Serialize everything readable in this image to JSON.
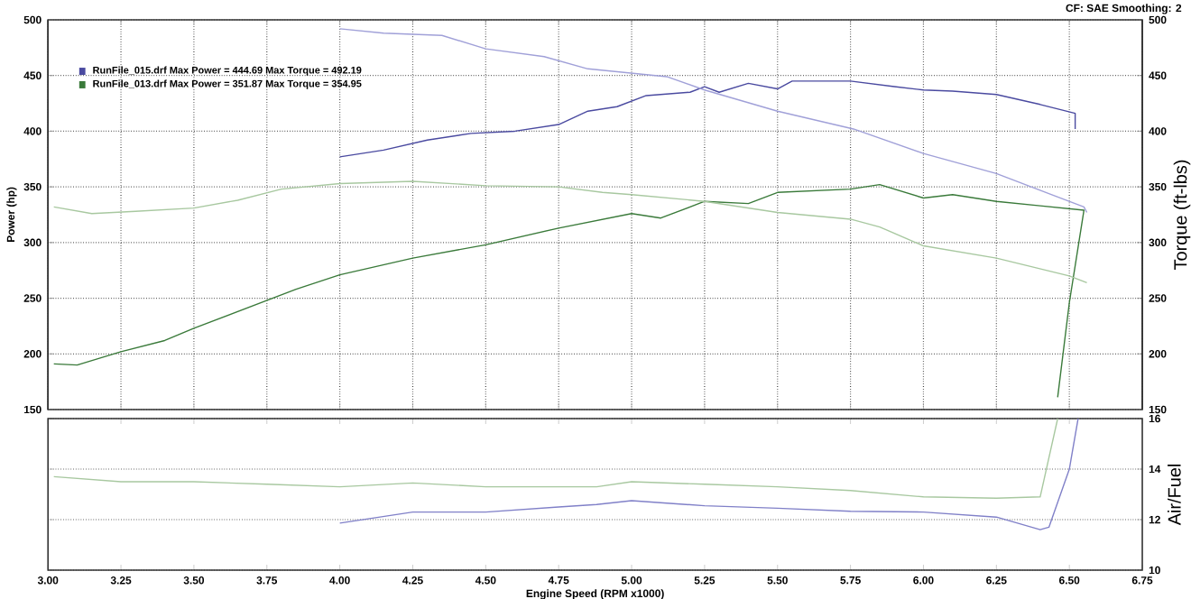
{
  "chart_data": [
    {
      "type": "line",
      "subtitle": "CF: SAE  Smoothing: 2",
      "ylabel": "Power (hp)",
      "y2label": "Torque (ft-lbs)",
      "xlim": [
        3,
        6.75
      ],
      "xticks": [
        3,
        3.25,
        3.5,
        3.75,
        4,
        4.25,
        4.5,
        4.75,
        5,
        5.25,
        5.5,
        5.75,
        6,
        6.25,
        6.5,
        6.75
      ],
      "ylim": [
        150,
        500
      ],
      "yticks": [
        150,
        200,
        250,
        300,
        350,
        400,
        450,
        500
      ],
      "y2lim": [
        150,
        500
      ],
      "y2ticks": [
        150,
        200,
        250,
        300,
        350,
        400,
        450,
        500
      ],
      "grid": true,
      "legend": "top left",
      "tick_labels": "y",
      "series": [
        {
          "name": "RunFile_015.drf Max Power = 444.69     Max Torque = 492.19",
          "color": "#4a4aa0",
          "axis": "y",
          "x": [
            4.0,
            4.15,
            4.3,
            4.45,
            4.6,
            4.75,
            4.85,
            4.95,
            5.05,
            5.2,
            5.25,
            5.3,
            5.4,
            5.5,
            5.55,
            5.75,
            5.9,
            6.0,
            6.1,
            6.25,
            6.4,
            6.52,
            6.52
          ],
          "values": [
            377,
            383,
            392,
            398,
            400,
            406,
            418,
            422,
            432,
            435,
            440,
            435,
            443,
            438,
            445,
            445,
            440,
            437,
            436,
            433,
            424,
            416,
            402
          ]
        },
        {
          "color": "#a0a0d8",
          "axis": "y2",
          "x": [
            4.0,
            4.15,
            4.35,
            4.5,
            4.7,
            4.85,
            5.12,
            5.25,
            5.5,
            5.76,
            6.0,
            6.25,
            6.44,
            6.55,
            6.56
          ],
          "values": [
            492,
            488,
            486,
            474,
            467,
            456,
            449,
            437,
            418,
            402,
            380,
            362,
            343,
            332,
            327
          ]
        },
        {
          "name": "RunFile_013.drf Max Power = 351.87     Max Torque = 354.95",
          "color": "#3a7a3a",
          "axis": "y",
          "x": [
            3.02,
            3.1,
            3.25,
            3.4,
            3.5,
            3.65,
            3.75,
            3.85,
            4.0,
            4.25,
            4.5,
            4.75,
            5.0,
            5.1,
            5.25,
            5.4,
            5.5,
            5.75,
            5.85,
            6.0,
            6.1,
            6.25,
            6.4,
            6.55,
            6.5,
            6.46
          ],
          "values": [
            191,
            190,
            202,
            212,
            223,
            238,
            248,
            258,
            271,
            286,
            298,
            313,
            326,
            322,
            337,
            335,
            345,
            348,
            352,
            340,
            343,
            337,
            333,
            329,
            246,
            161
          ]
        },
        {
          "color": "#a8c8a0",
          "axis": "y2",
          "x": [
            3.02,
            3.15,
            3.3,
            3.5,
            3.65,
            3.8,
            4.0,
            4.25,
            4.5,
            4.75,
            4.9,
            5.0,
            5.25,
            5.5,
            5.75,
            5.85,
            6.0,
            6.25,
            6.5,
            6.56
          ],
          "values": [
            332,
            326,
            328,
            331,
            338,
            348,
            353,
            355,
            351,
            350,
            345,
            343,
            337,
            327,
            321,
            314,
            297,
            286,
            270,
            264
          ]
        }
      ]
    },
    {
      "type": "line",
      "xlabel": "Engine Speed (RPM x1000)",
      "y2label": "Air/Fuel",
      "xlim": [
        3,
        6.75
      ],
      "xticks": [
        {
          "value": 3,
          "label": "3.00"
        },
        {
          "value": 3.25,
          "label": "3.25"
        },
        {
          "value": 3.5,
          "label": "3.50"
        },
        {
          "value": 3.75,
          "label": "3.75"
        },
        {
          "value": 4,
          "label": "4.00"
        },
        {
          "value": 4.25,
          "label": "4.25"
        },
        {
          "value": 4.5,
          "label": "4.50"
        },
        {
          "value": 4.75,
          "label": "4.75"
        },
        {
          "value": 5,
          "label": "5.00"
        },
        {
          "value": 5.25,
          "label": "5.25"
        },
        {
          "value": 5.5,
          "label": "5.50"
        },
        {
          "value": 5.75,
          "label": "5.75"
        },
        {
          "value": 6,
          "label": "6.00"
        },
        {
          "value": 6.25,
          "label": "6.25"
        },
        {
          "value": 6.5,
          "label": "6.50"
        },
        {
          "value": 6.75,
          "label": "6.75"
        }
      ],
      "y2lim": [
        10,
        16
      ],
      "y2ticks": [
        10,
        12,
        14,
        16
      ],
      "grid": "y",
      "series": [
        {
          "color": "#a8c8a0",
          "axis": "y2",
          "x": [
            3.02,
            3.25,
            3.5,
            3.75,
            4.0,
            4.25,
            4.5,
            4.75,
            4.88,
            5.0,
            5.25,
            5.5,
            5.75,
            6.0,
            6.25,
            6.4,
            6.46
          ],
          "values": [
            13.7,
            13.5,
            13.5,
            13.4,
            13.3,
            13.45,
            13.3,
            13.3,
            13.3,
            13.5,
            13.4,
            13.3,
            13.15,
            12.9,
            12.85,
            12.9,
            16
          ]
        },
        {
          "color": "#8080c8",
          "axis": "y2",
          "x": [
            4.0,
            4.25,
            4.5,
            4.75,
            4.88,
            5.0,
            5.25,
            5.5,
            5.75,
            6.0,
            6.25,
            6.4,
            6.43,
            6.5,
            6.53
          ],
          "values": [
            11.86,
            12.3,
            12.3,
            12.5,
            12.6,
            12.75,
            12.55,
            12.45,
            12.33,
            12.3,
            12.1,
            11.6,
            11.7,
            14,
            16
          ]
        }
      ]
    }
  ]
}
